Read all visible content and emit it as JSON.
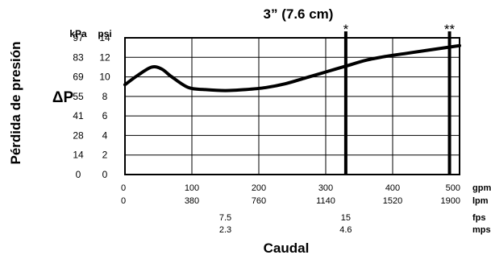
{
  "chart_data": {
    "type": "line",
    "title": "3” (7.6 cm)",
    "ylabel": "Pérdida de presión",
    "ylabel_symbol": "ΔP",
    "xlabel": "Caudal",
    "y_units": [
      "kPa",
      "psi"
    ],
    "y_ticks_psi": [
      "0",
      "2",
      "4",
      "6",
      "8",
      "10",
      "12",
      "14"
    ],
    "y_ticks_kpa": [
      "0",
      "14",
      "28",
      "41",
      "55",
      "69",
      "83",
      "97"
    ],
    "ylim_psi": [
      0,
      14
    ],
    "xlim_gpm": [
      0,
      500
    ],
    "x_axes": [
      {
        "unit": "gpm",
        "ticks": [
          "0",
          "100",
          "200",
          "300",
          "400",
          "500"
        ],
        "gpm_at": [
          0,
          100,
          200,
          300,
          400,
          500
        ]
      },
      {
        "unit": "lpm",
        "ticks": [
          "0",
          "380",
          "760",
          "1140",
          "1520",
          "1900"
        ],
        "gpm_at": [
          0,
          100,
          200,
          300,
          400,
          500
        ]
      },
      {
        "unit": "fps",
        "ticks": [
          "7.5",
          "15"
        ],
        "gpm_at": [
          150,
          330
        ]
      },
      {
        "unit": "mps",
        "ticks": [
          "2.3",
          "4.6"
        ],
        "gpm_at": [
          150,
          330
        ]
      }
    ],
    "markers": [
      {
        "label": "*",
        "x_gpm": 330
      },
      {
        "label": "**",
        "x_gpm": 485
      }
    ],
    "grid": true,
    "series": [
      {
        "values": [
          {
            "x": 0,
            "y": 9.2
          },
          {
            "x": 20,
            "y": 10.2
          },
          {
            "x": 40,
            "y": 11.0
          },
          {
            "x": 55,
            "y": 10.8
          },
          {
            "x": 70,
            "y": 10.0
          },
          {
            "x": 95,
            "y": 8.9
          },
          {
            "x": 120,
            "y": 8.7
          },
          {
            "x": 150,
            "y": 8.6
          },
          {
            "x": 180,
            "y": 8.7
          },
          {
            "x": 210,
            "y": 8.9
          },
          {
            "x": 240,
            "y": 9.3
          },
          {
            "x": 270,
            "y": 9.9
          },
          {
            "x": 300,
            "y": 10.5
          },
          {
            "x": 330,
            "y": 11.1
          },
          {
            "x": 360,
            "y": 11.7
          },
          {
            "x": 390,
            "y": 12.1
          },
          {
            "x": 420,
            "y": 12.4
          },
          {
            "x": 450,
            "y": 12.7
          },
          {
            "x": 480,
            "y": 13.0
          },
          {
            "x": 500,
            "y": 13.2
          }
        ]
      }
    ]
  }
}
